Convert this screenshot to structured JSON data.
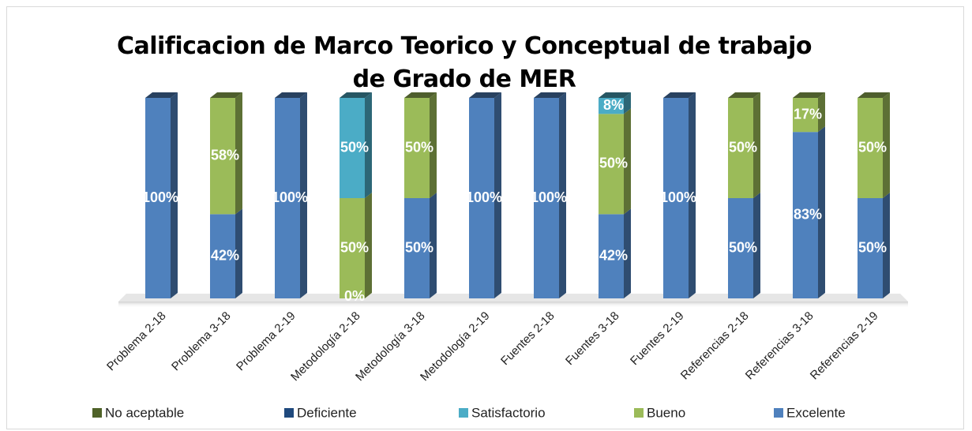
{
  "chart_data": {
    "type": "bar3d_stacked",
    "title": "Calificacion de Marco Teorico y Conceptual de trabajo de Grado de MER",
    "categories": [
      "Problema 2-18",
      "Problema 3-18",
      "Problema 2-19",
      "Metodología 2-18",
      "Metodología 3-18",
      "Metodología 2-19",
      "Fuentes 2-18",
      "Fuentes 3-18",
      "Fuentes 2-19",
      "Referencias 2-18",
      "Referencias 3-18",
      "Referencias 2-19"
    ],
    "ylim": [
      0,
      100
    ],
    "series": [
      {
        "name": "Excelente",
        "color": "#4f81bd",
        "values": [
          100,
          42,
          100,
          0,
          50,
          100,
          100,
          42,
          100,
          50,
          83,
          50
        ],
        "value_labels": [
          "100%",
          "42%",
          "100%",
          "0%",
          "50%",
          "100%",
          "100%",
          "42%",
          "100%",
          "50%",
          "83%",
          "50%"
        ]
      },
      {
        "name": "Bueno",
        "color": "#9bbb59",
        "values": [
          null,
          58,
          null,
          50,
          50,
          null,
          null,
          50,
          null,
          50,
          17,
          50
        ],
        "value_labels": [
          null,
          "58%",
          null,
          "50%",
          "50%",
          null,
          null,
          "50%",
          null,
          "50%",
          "17%",
          "50%"
        ]
      },
      {
        "name": "Satisfactorio",
        "color": "#4bacc6",
        "values": [
          null,
          null,
          null,
          50,
          null,
          null,
          null,
          8,
          null,
          null,
          null,
          null
        ],
        "value_labels": [
          null,
          null,
          null,
          "50%",
          null,
          null,
          null,
          "8%",
          null,
          null,
          null,
          null
        ]
      },
      {
        "name": "Deficiente",
        "color": "#1f497d",
        "values": [
          null,
          null,
          null,
          null,
          null,
          null,
          null,
          null,
          null,
          null,
          null,
          null
        ]
      },
      {
        "name": "No aceptable",
        "color": "#4f6228",
        "values": [
          null,
          null,
          null,
          null,
          null,
          null,
          null,
          null,
          null,
          null,
          null,
          null
        ]
      }
    ],
    "legend": "bottom"
  }
}
